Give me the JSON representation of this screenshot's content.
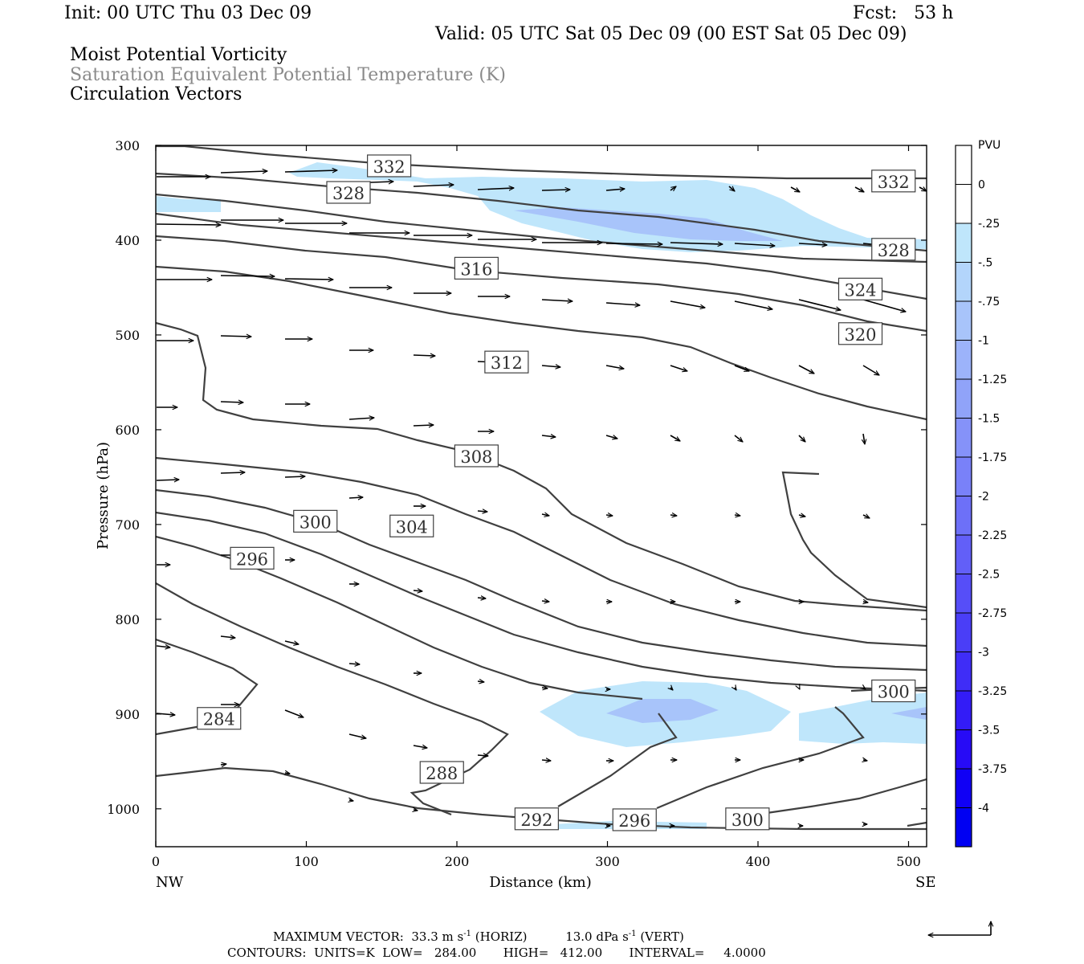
{
  "header": {
    "init": "Init: 00 UTC Thu 03 Dec 09",
    "fcst": "Fcst:   53 h",
    "valid": "Valid: 05 UTC Sat 05 Dec 09 (00 EST Sat 05 Dec 09)",
    "field1": "Moist Potential Vorticity",
    "field2": "Saturation Equivalent Potential Temperature (K)",
    "field3": "Circulation Vectors"
  },
  "footer": {
    "maxvec_label": "MAXIMUM VECTOR:",
    "maxvec_horiz": "33.3 m s",
    "maxvec_horiz_exp": "-1",
    "maxvec_horiz_unit": " (HORIZ)",
    "maxvec_vert": "13.0 dPa s",
    "maxvec_vert_exp": "-1",
    "maxvec_vert_unit": " (VERT)",
    "contours": "CONTOURS:  UNITS=K  LOW=   284.00       HIGH=   412.00       INTERVAL=     4.0000"
  },
  "colorbar": {
    "unit": "PVU",
    "labels": [
      "0",
      "-.25",
      "-.5",
      "-.75",
      "-1",
      "-1.25",
      "-1.5",
      "-1.75",
      "-2",
      "-2.25",
      "-2.5",
      "-2.75",
      "-3",
      "-3.25",
      "-3.5",
      "-3.75",
      "-4"
    ],
    "colors": [
      "#ffffff",
      "#ffffff",
      "#bfe6fb",
      "#b3d5fb",
      "#a8c4fa",
      "#9cb3fa",
      "#90a3f9",
      "#8592f9",
      "#7981f9",
      "#6d70f8",
      "#625ff8",
      "#564ef8",
      "#4a3ef7",
      "#3f2df7",
      "#331cf7",
      "#270bf6",
      "#1000f5",
      "#0000f2"
    ]
  },
  "chart_data": {
    "type": "cross-section",
    "xlabel": "Distance (km)",
    "ylabel": "Pressure (hPa)",
    "xlim": [
      0,
      512
    ],
    "ylim": [
      1040,
      300
    ],
    "xticks": [
      0,
      100,
      200,
      300,
      400,
      500
    ],
    "yticks": [
      300,
      400,
      500,
      600,
      700,
      800,
      900,
      1000
    ],
    "x_end_labels": [
      "NW",
      "SE"
    ],
    "contour_units": "K",
    "contour_low": 284.0,
    "contour_high": 412.0,
    "contour_interval": 4.0,
    "contour_labels": [
      {
        "text": "332",
        "x": 155,
        "p": 322
      },
      {
        "text": "328",
        "x": 128,
        "p": 350
      },
      {
        "text": "332",
        "x": 490,
        "p": 338
      },
      {
        "text": "328",
        "x": 490,
        "p": 410
      },
      {
        "text": "316",
        "x": 213,
        "p": 430
      },
      {
        "text": "324",
        "x": 468,
        "p": 452
      },
      {
        "text": "320",
        "x": 468,
        "p": 499
      },
      {
        "text": "312",
        "x": 233,
        "p": 529
      },
      {
        "text": "308",
        "x": 213,
        "p": 628
      },
      {
        "text": "304",
        "x": 170,
        "p": 702
      },
      {
        "text": "300",
        "x": 106,
        "p": 697
      },
      {
        "text": "296",
        "x": 64,
        "p": 736
      },
      {
        "text": "300",
        "x": 490,
        "p": 876
      },
      {
        "text": "284",
        "x": 42,
        "p": 905
      },
      {
        "text": "288",
        "x": 190,
        "p": 962
      },
      {
        "text": "292",
        "x": 253,
        "p": 1011
      },
      {
        "text": "296",
        "x": 318,
        "p": 1012
      },
      {
        "text": "300",
        "x": 393,
        "p": 1011
      }
    ]
  }
}
